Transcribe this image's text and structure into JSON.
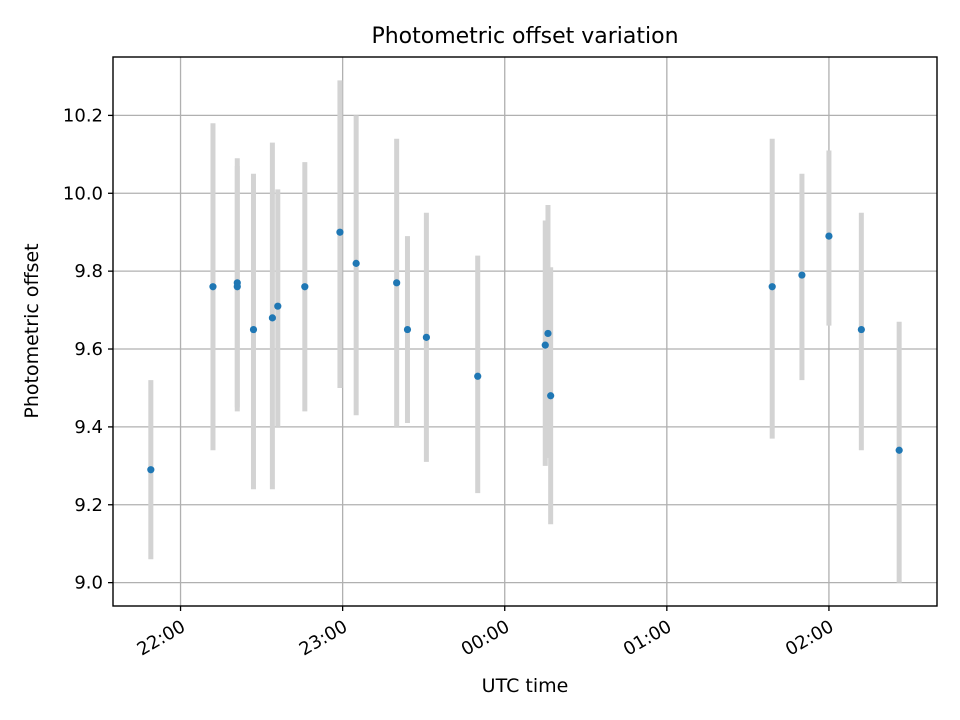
{
  "chart_data": {
    "type": "scatter",
    "title": "Photometric offset variation",
    "xlabel": "UTC time",
    "ylabel": "Photometric offset",
    "x_unit": "UTC clock time (HH:MM)",
    "xlim": [
      "21:35",
      "02:40"
    ],
    "ylim": [
      8.94,
      10.35
    ],
    "x_ticks": [
      "22:00",
      "23:00",
      "00:00",
      "01:00",
      "02:00"
    ],
    "y_ticks": [
      "9.0",
      "9.2",
      "9.4",
      "9.6",
      "9.8",
      "10.0",
      "10.2"
    ],
    "grid": true,
    "colors": {
      "point": "#1f77b4",
      "error_bar": "#d3d3d3"
    },
    "points": [
      {
        "x": "21:49",
        "y": 9.29,
        "y_low": 9.06,
        "y_high": 9.52
      },
      {
        "x": "22:12",
        "y": 9.76,
        "y_low": 9.34,
        "y_high": 10.18
      },
      {
        "x": "22:21",
        "y": 9.77,
        "y_low": 9.45,
        "y_high": 10.09
      },
      {
        "x": "22:21",
        "y": 9.76,
        "y_low": 9.44,
        "y_high": 10.07
      },
      {
        "x": "22:27",
        "y": 9.65,
        "y_low": 9.24,
        "y_high": 10.05
      },
      {
        "x": "22:34",
        "y": 9.68,
        "y_low": 9.24,
        "y_high": 10.13
      },
      {
        "x": "22:36",
        "y": 9.71,
        "y_low": 9.4,
        "y_high": 10.01
      },
      {
        "x": "22:46",
        "y": 9.76,
        "y_low": 9.44,
        "y_high": 10.08
      },
      {
        "x": "22:59",
        "y": 9.9,
        "y_low": 9.5,
        "y_high": 10.29
      },
      {
        "x": "23:05",
        "y": 9.82,
        "y_low": 9.43,
        "y_high": 10.2
      },
      {
        "x": "23:20",
        "y": 9.77,
        "y_low": 9.4,
        "y_high": 10.14
      },
      {
        "x": "23:24",
        "y": 9.65,
        "y_low": 9.41,
        "y_high": 9.89
      },
      {
        "x": "23:31",
        "y": 9.63,
        "y_low": 9.31,
        "y_high": 9.95
      },
      {
        "x": "23:50",
        "y": 9.53,
        "y_low": 9.23,
        "y_high": 9.84
      },
      {
        "x": "00:15",
        "y": 9.61,
        "y_low": 9.3,
        "y_high": 9.93
      },
      {
        "x": "00:16",
        "y": 9.64,
        "y_low": 9.32,
        "y_high": 9.97
      },
      {
        "x": "00:17",
        "y": 9.48,
        "y_low": 9.15,
        "y_high": 9.81
      },
      {
        "x": "01:39",
        "y": 9.76,
        "y_low": 9.37,
        "y_high": 10.14
      },
      {
        "x": "01:50",
        "y": 9.79,
        "y_low": 9.52,
        "y_high": 10.05
      },
      {
        "x": "02:00",
        "y": 9.89,
        "y_low": 9.66,
        "y_high": 10.11
      },
      {
        "x": "02:12",
        "y": 9.65,
        "y_low": 9.34,
        "y_high": 9.95
      },
      {
        "x": "02:26",
        "y": 9.34,
        "y_low": 9.0,
        "y_high": 9.67
      }
    ]
  }
}
